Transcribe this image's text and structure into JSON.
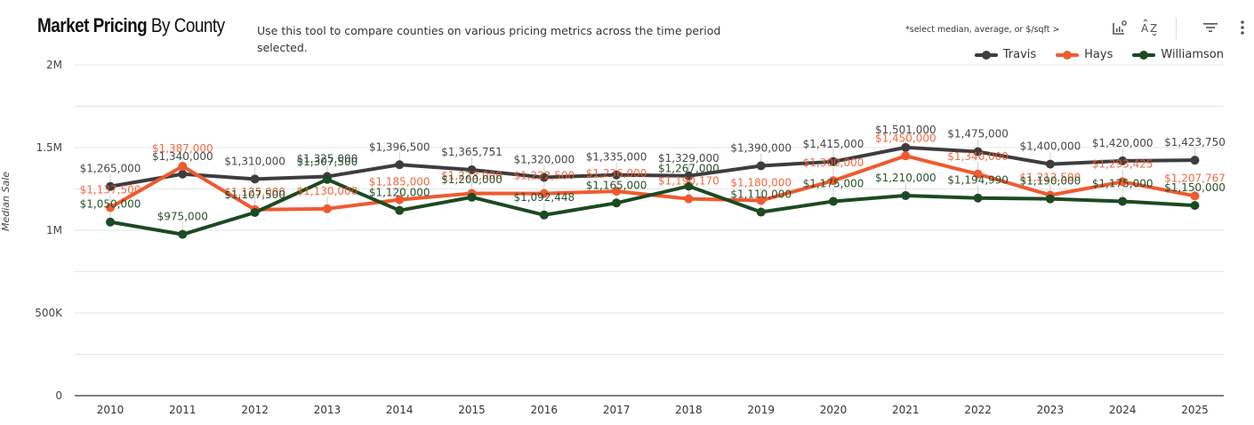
{
  "header": {
    "title_bold": "Market Pricing",
    "title_rest": " By County",
    "description": "Use this tool to compare counties on various pricing metrics across the time period selected.",
    "metric_hint": "*select median, average, or $/sqft  >"
  },
  "toolbar": {
    "icons": [
      "chart-insights-icon",
      "sort-az-icon",
      "filter-icon",
      "more-options-icon"
    ]
  },
  "colors": {
    "Travis": "#3d3d3d",
    "Hays": "#ef5a2f",
    "Williamson": "#1c4a22",
    "grid": "#e6e6e6",
    "axis": "#555555"
  },
  "chart_data": {
    "type": "line",
    "title": "Market Pricing By County",
    "xlabel": "",
    "ylabel": "Median Sale",
    "ylim": [
      0,
      2000000
    ],
    "yticks": [
      0,
      500000,
      1000000,
      1500000,
      2000000
    ],
    "ytick_labels": [
      "0",
      "500K",
      "1M",
      "1.5M",
      "2M"
    ],
    "grid": true,
    "legend_position": "top-right",
    "categories": [
      "2010",
      "2011",
      "2012",
      "2013",
      "2014",
      "2015",
      "2016",
      "2017",
      "2018",
      "2019",
      "2020",
      "2021",
      "2022",
      "2023",
      "2024",
      "2025"
    ],
    "series": [
      {
        "name": "Travis",
        "values": [
          1265000,
          1340000,
          1310000,
          1325000,
          1396500,
          1365751,
          1320000,
          1335000,
          1329000,
          1390000,
          1415000,
          1501000,
          1475000,
          1400000,
          1420000,
          1423750
        ],
        "labels": [
          "$1,265,000",
          "$1,340,000",
          "$1,310,000",
          "$1,325,000",
          "$1,396,500",
          "$1,365,751",
          "$1,320,000",
          "$1,335,000",
          "$1,329,000",
          "$1,390,000",
          "$1,415,000",
          "$1,501,000",
          "$1,475,000",
          "$1,400,000",
          "$1,420,000",
          "$1,423,750"
        ]
      },
      {
        "name": "Hays",
        "values": [
          1137500,
          1387000,
          1125000,
          1130000,
          1185000,
          1223000,
          1222500,
          1236000,
          1190170,
          1180000,
          1300000,
          1450000,
          1340000,
          1212500,
          1293425,
          1207767
        ],
        "labels": [
          "$1,137,500",
          "$1,387,000",
          "$1,125,000",
          "$1,130,000",
          "$1,185,000",
          "$1,223,000",
          "$1,222,500",
          "$1,236,000",
          "$1,190,170",
          "$1,180,000",
          "$1,300,000",
          "$1,450,000",
          "$1,340,000",
          "$1,212,500",
          "$1,293,425",
          "$1,207,767"
        ]
      },
      {
        "name": "Williamson",
        "values": [
          1050000,
          975000,
          1107500,
          1307500,
          1120000,
          1200000,
          1092448,
          1165000,
          1267000,
          1110000,
          1175000,
          1210000,
          1194990,
          1190000,
          1175000,
          1150000
        ],
        "labels": [
          "$1,050,000",
          "$975,000",
          "$1,107,500",
          "$1,307,500",
          "$1,120,000",
          "$1,200,000",
          "$1,092,448",
          "$1,165,000",
          "$1,267,000",
          "$1,110,000",
          "$1,175,000",
          "$1,210,000",
          "$1,194,990",
          "$1,190,000",
          "$1,175,000",
          "$1,150,000"
        ]
      }
    ]
  }
}
